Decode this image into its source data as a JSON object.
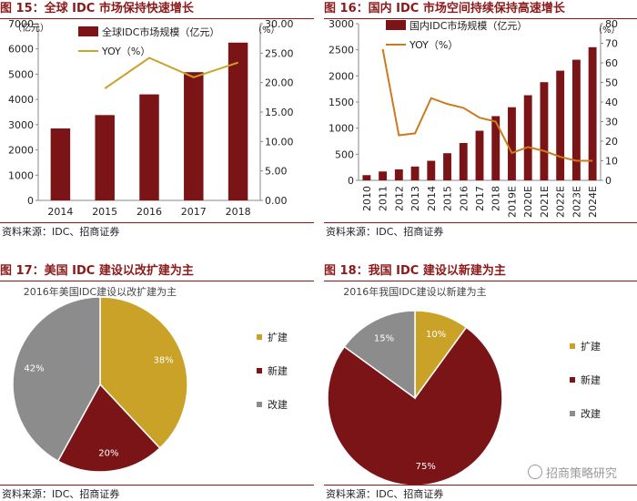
{
  "figures": {
    "fig15": {
      "title": "图 15：全球 IDC 市场保持快速增长",
      "source": "资料来源：IDC、招商证券"
    },
    "fig16": {
      "title": "图 16：国内 IDC 市场空间持续保持高速增长",
      "source": "资料来源：IDC、招商证券"
    },
    "fig17": {
      "title": "图 17：美国 IDC 建设以改扩建为主",
      "source": "资料来源：IDC、招商证券"
    },
    "fig18": {
      "title": "图 18：我国 IDC 建设以新建为主",
      "source": "资料来源：IDC、招商证券"
    }
  },
  "watermark": "招商策略研究",
  "chart_data": [
    {
      "id": "fig15",
      "type": "bar",
      "title": "",
      "categories": [
        "2014",
        "2015",
        "2016",
        "2017",
        "2018"
      ],
      "series": [
        {
          "name": "全球IDC市场规模（亿元）",
          "type": "bar",
          "axis": "left",
          "color": "#7b1416",
          "values": [
            2850,
            3380,
            4200,
            5080,
            6250
          ]
        },
        {
          "name": "YOY（%）",
          "type": "line",
          "axis": "right",
          "color": "#c9a227",
          "values": [
            null,
            19.0,
            24.2,
            20.9,
            23.4
          ]
        }
      ],
      "y_left": {
        "label": "（亿元）",
        "min": 0,
        "max": 7000,
        "ticks": [
          "0",
          "1000",
          "2000",
          "3000",
          "4000",
          "5000",
          "6000",
          "7000"
        ]
      },
      "y_right": {
        "label": "（%）",
        "min": 0,
        "max": 30,
        "ticks": [
          "0.00",
          "5.00",
          "10.00",
          "15.00",
          "20.00",
          "25.00",
          "30.00"
        ]
      },
      "legend": "top-left",
      "grid": false
    },
    {
      "id": "fig16",
      "type": "bar",
      "title": "",
      "categories": [
        "2010",
        "2011",
        "2012",
        "2013",
        "2014",
        "2015",
        "2016",
        "2017",
        "2018",
        "2019E",
        "2020E",
        "2021E",
        "2022E",
        "2023E",
        "2024E"
      ],
      "series": [
        {
          "name": "国内IDC市场规模（亿元）",
          "type": "bar",
          "axis": "left",
          "color": "#7b1416",
          "values": [
            100,
            170,
            210,
            265,
            375,
            520,
            715,
            950,
            1230,
            1400,
            1630,
            1880,
            2100,
            2310,
            2550
          ]
        },
        {
          "name": "YOY（%）",
          "type": "line",
          "axis": "right",
          "color": "#cc7a1f",
          "values": [
            null,
            67,
            23,
            24,
            42,
            39,
            37,
            32,
            30,
            14,
            17,
            15,
            12,
            10,
            10
          ]
        }
      ],
      "y_left": {
        "label": "",
        "min": 0,
        "max": 3000,
        "ticks": [
          "0",
          "500",
          "1000",
          "1500",
          "2000",
          "2500",
          "3000"
        ]
      },
      "y_right": {
        "label": "（%）",
        "min": 0,
        "max": 80,
        "ticks": [
          "0",
          "10",
          "20",
          "30",
          "40",
          "50",
          "60",
          "70",
          "80"
        ]
      },
      "legend": "top-left",
      "grid": false
    },
    {
      "id": "fig17",
      "type": "pie",
      "title": "2016年美国IDC建设以改扩建为主",
      "slices": [
        {
          "name": "扩建",
          "value": 38,
          "label": "38%",
          "color": "#c9a227"
        },
        {
          "name": "新建",
          "value": 20,
          "label": "20%",
          "color": "#7b1416"
        },
        {
          "name": "改建",
          "value": 42,
          "label": "42%",
          "color": "#8c8c8c"
        }
      ],
      "legend": "right"
    },
    {
      "id": "fig18",
      "type": "pie",
      "title": "2016年我国IDC建设以新建为主",
      "slices": [
        {
          "name": "扩建",
          "value": 10,
          "label": "10%",
          "color": "#c9a227"
        },
        {
          "name": "新建",
          "value": 75,
          "label": "75%",
          "color": "#7b1416"
        },
        {
          "name": "改建",
          "value": 15,
          "label": "15%",
          "color": "#8c8c8c"
        }
      ],
      "legend": "right"
    }
  ]
}
